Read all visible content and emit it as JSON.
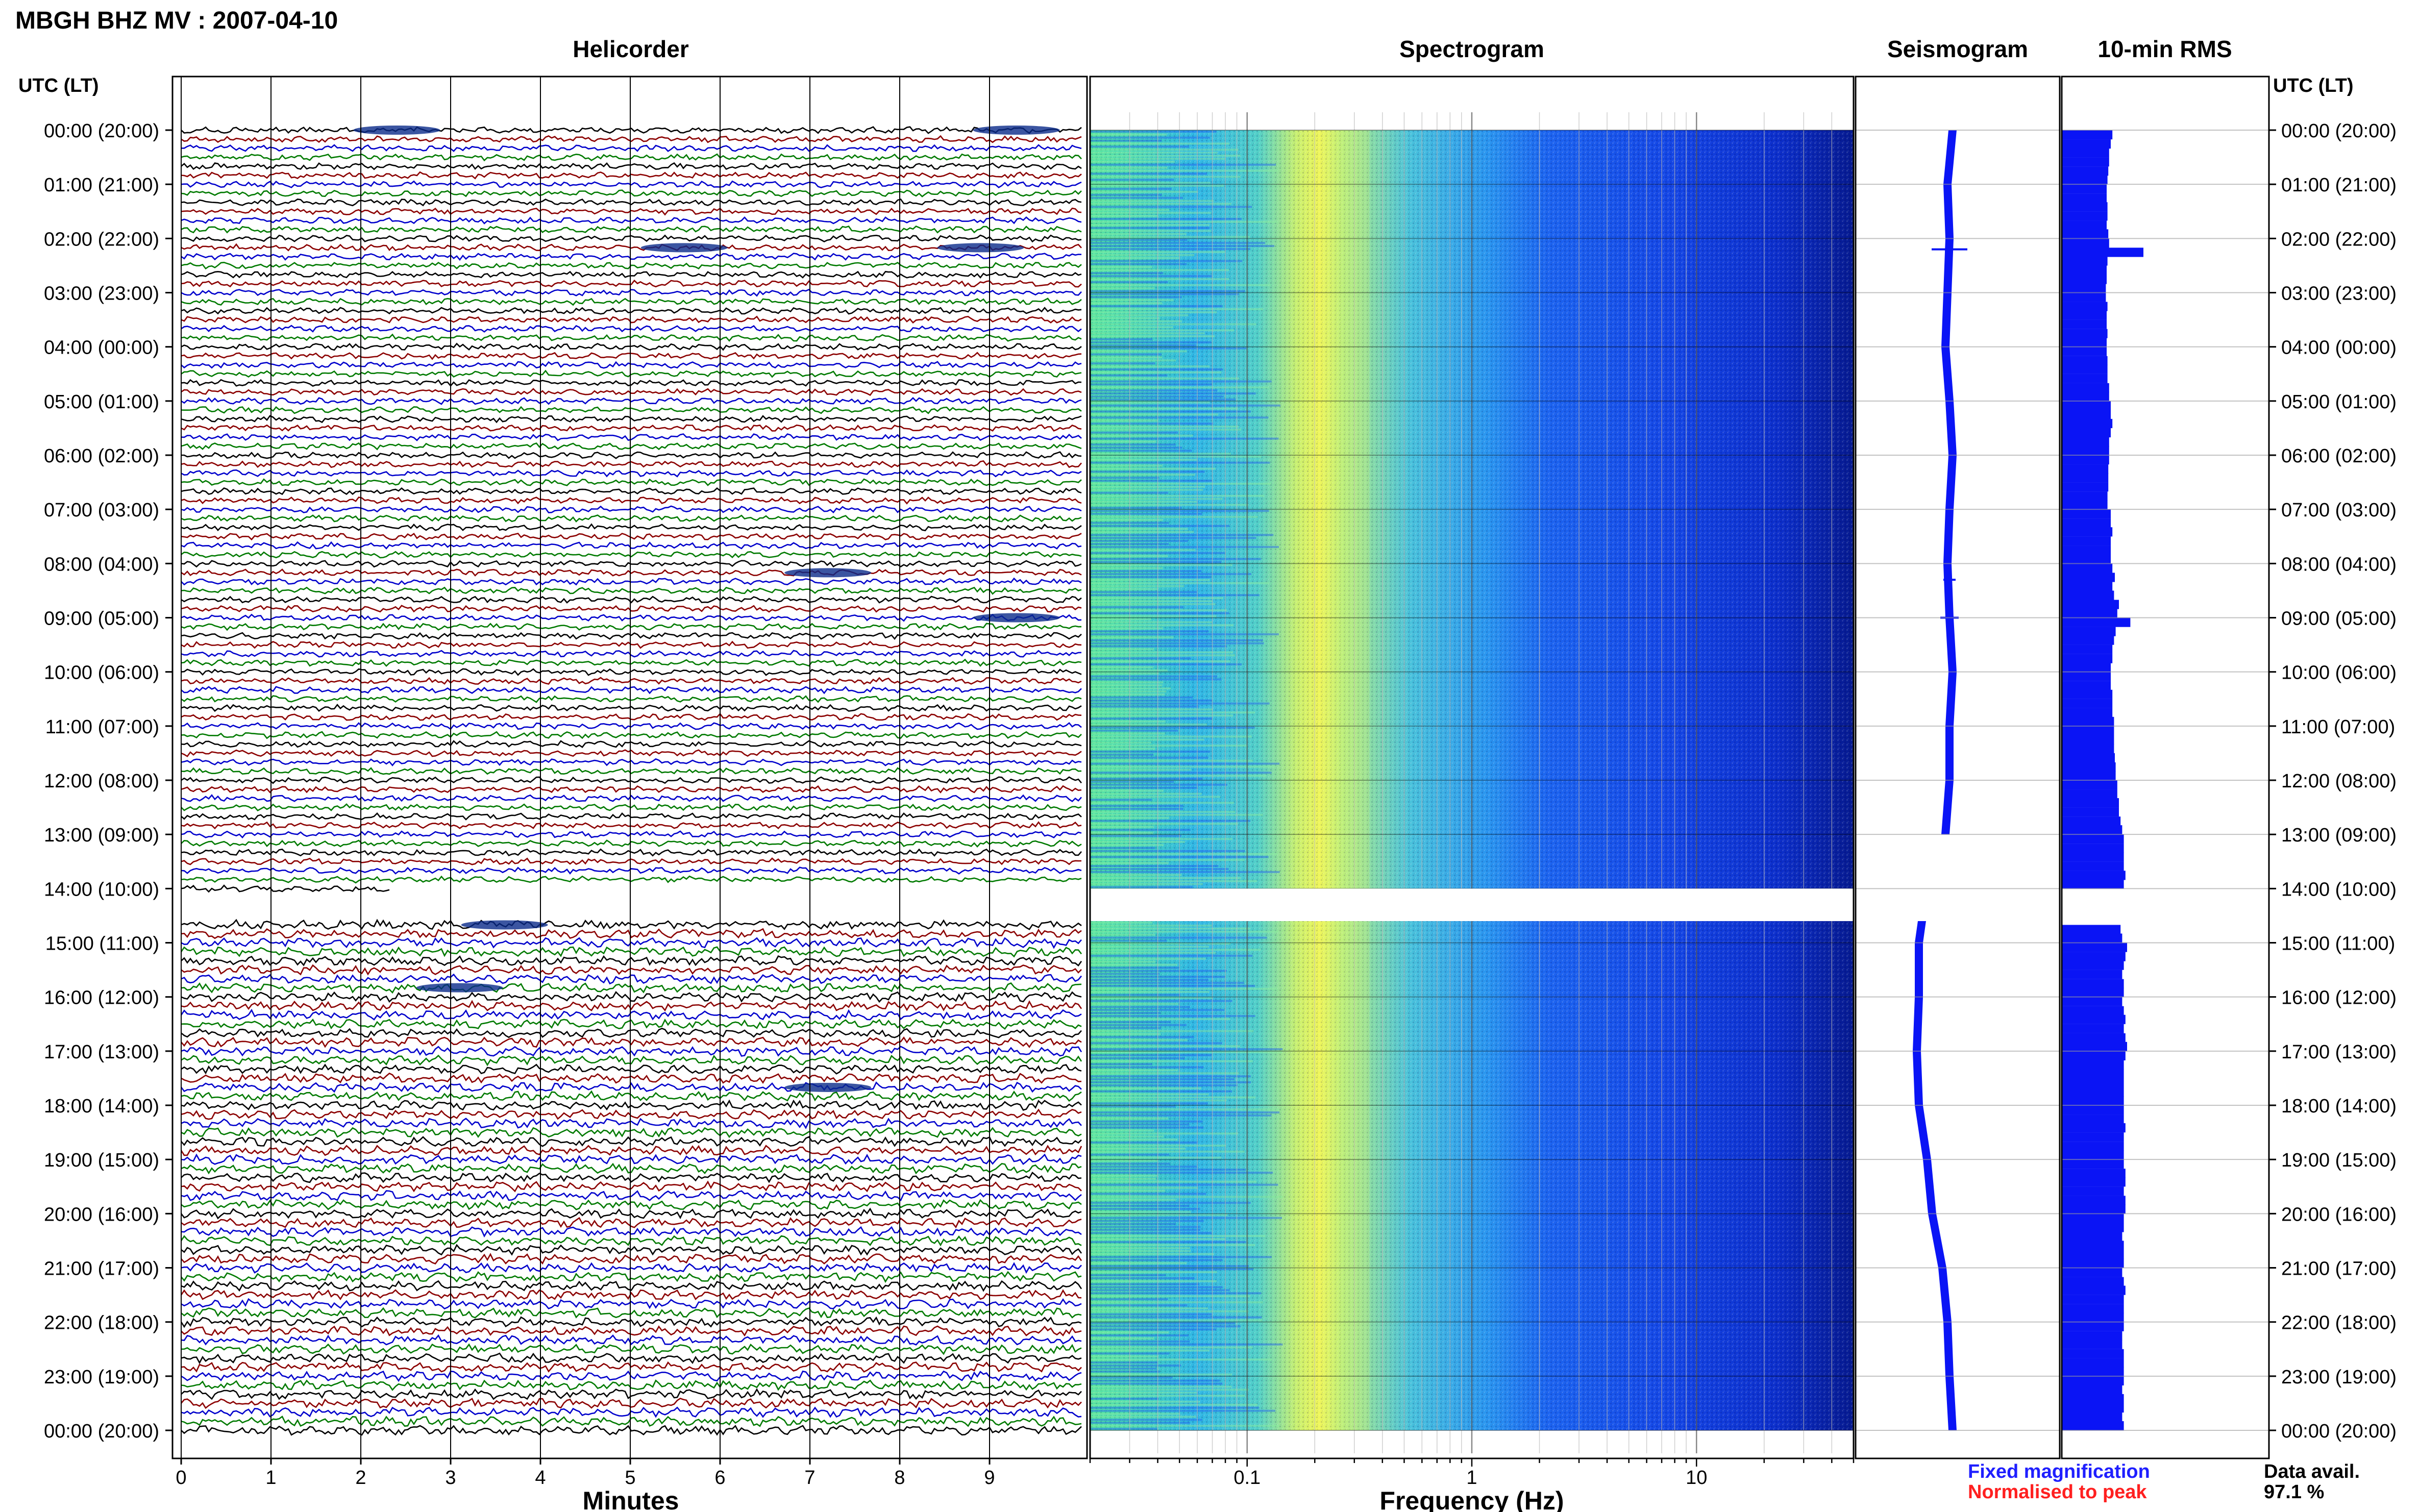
{
  "header": {
    "station_title": "MBGH BHZ MV : 2007-04-10",
    "time_axis_label": "UTC (LT)"
  },
  "panels": {
    "helicorder": "Helicorder",
    "spectrogram": "Spectrogram",
    "seismogram": "Seismogram",
    "rms": "10-min RMS"
  },
  "legend": {
    "fixed": "Fixed magnification",
    "normalised": "Normalised to peak",
    "fixed_color": "#1f1fff",
    "normalised_color": "#ff2020"
  },
  "data_availability": {
    "label": "Data avail.",
    "value": "97.1 %"
  },
  "colors": {
    "trace_cycle": [
      "#000000",
      "#8b0000",
      "#0000cc",
      "#007a00"
    ],
    "seismogram_fill": "#0a14f5",
    "rms_fill": "#0a14f5",
    "spectrogram_low": "#00007a",
    "spectrogram_mid": "#1e90ff",
    "spectrogram_high": "#ffff40"
  },
  "chart_data": [
    {
      "type": "heatmap",
      "panel": "helicorder",
      "xlabel": "Minutes",
      "ylabel": "UTC (LT)",
      "xlim": [
        0,
        10
      ],
      "x_ticks": [
        "0",
        "1",
        "2",
        "3",
        "4",
        "5",
        "6",
        "7",
        "8",
        "9"
      ],
      "y_ticks": [
        "00:00 (20:00)",
        "01:00 (21:00)",
        "02:00 (22:00)",
        "03:00 (23:00)",
        "04:00 (00:00)",
        "05:00 (01:00)",
        "06:00 (02:00)",
        "07:00 (03:00)",
        "08:00 (04:00)",
        "09:00 (05:00)",
        "10:00 (06:00)",
        "11:00 (07:00)",
        "12:00 (08:00)",
        "13:00 (09:00)",
        "14:00 (10:00)",
        "15:00 (11:00)",
        "16:00 (12:00)",
        "17:00 (13:00)",
        "18:00 (14:00)",
        "19:00 (15:00)",
        "20:00 (16:00)",
        "21:00 (17:00)",
        "22:00 (18:00)",
        "23:00 (19:00)",
        "00:00 (20:00)"
      ],
      "lines_per_hour": 6,
      "data_gap_hours": [
        14.0,
        14.6
      ],
      "events": [
        {
          "hour": 0.0,
          "minute": 2.4
        },
        {
          "hour": 0.0,
          "minute": 9.3
        },
        {
          "hour": 2.17,
          "minute": 5.6
        },
        {
          "hour": 2.17,
          "minute": 8.9
        },
        {
          "hour": 8.17,
          "minute": 7.2
        },
        {
          "hour": 9.0,
          "minute": 9.3
        },
        {
          "hour": 14.67,
          "minute": 3.6
        },
        {
          "hour": 15.83,
          "minute": 3.1
        },
        {
          "hour": 17.67,
          "minute": 7.2
        }
      ]
    },
    {
      "type": "heatmap",
      "panel": "spectrogram",
      "xlabel": "Frequency (Hz)",
      "x_scale": "log",
      "xlim": [
        0.02,
        50
      ],
      "x_ticks": [
        "0.1",
        "1",
        "10"
      ],
      "peak_band_hz": [
        0.2,
        0.35
      ],
      "data_gap_hours": [
        14.0,
        14.6
      ]
    },
    {
      "type": "line",
      "panel": "seismogram",
      "x": [
        0,
        1,
        2,
        3,
        4,
        5,
        6,
        7,
        8,
        9,
        10,
        11,
        12,
        13,
        14.6,
        15,
        16,
        17,
        18,
        19,
        20,
        21,
        22,
        23,
        24
      ],
      "y": [
        0.45,
        0.4,
        0.42,
        0.4,
        0.38,
        0.42,
        0.45,
        0.42,
        0.4,
        0.42,
        0.45,
        0.42,
        0.42,
        0.38,
        0.15,
        0.12,
        0.12,
        0.1,
        0.12,
        0.2,
        0.25,
        0.35,
        0.4,
        0.42,
        0.45
      ]
    },
    {
      "type": "bar",
      "panel": "rms",
      "x": [
        0,
        0.17,
        0.33,
        0.5,
        0.67,
        0.83,
        1,
        1.17,
        1.33,
        1.5,
        1.67,
        1.83,
        2,
        2.17,
        2.33,
        2.5,
        2.67,
        2.83,
        3,
        3.17,
        3.33,
        3.5,
        3.67,
        3.83,
        4,
        4.17,
        4.33,
        4.5,
        4.67,
        4.83,
        5,
        5.17,
        5.33,
        5.5,
        5.67,
        5.83,
        6,
        6.17,
        6.33,
        6.5,
        6.67,
        6.83,
        7,
        7.17,
        7.33,
        7.5,
        7.67,
        7.83,
        8,
        8.17,
        8.33,
        8.5,
        8.67,
        8.83,
        9,
        9.17,
        9.33,
        9.5,
        9.67,
        9.83,
        10,
        10.17,
        10.33,
        10.5,
        10.67,
        10.83,
        11,
        11.17,
        11.33,
        11.5,
        11.67,
        11.83,
        12,
        12.17,
        12.33,
        12.5,
        12.67,
        12.83,
        13,
        13.17,
        13.33,
        13.5,
        13.67,
        13.83,
        14.67,
        14.83,
        15,
        15.17,
        15.33,
        15.5,
        15.67,
        15.83,
        16,
        16.17,
        16.33,
        16.5,
        16.67,
        16.83,
        17,
        17.17,
        17.33,
        17.5,
        17.67,
        17.83,
        18,
        18.17,
        18.33,
        18.5,
        18.67,
        18.83,
        19,
        19.17,
        19.33,
        19.5,
        19.67,
        19.83,
        20,
        20.17,
        20.33,
        20.5,
        20.67,
        20.83,
        21,
        21.17,
        21.33,
        21.5,
        21.67,
        21.83,
        22,
        22.17,
        22.33,
        22.5,
        22.67,
        22.83,
        23,
        23.17,
        23.33,
        23.5,
        23.67,
        23.83
      ],
      "values": [
        0.62,
        0.6,
        0.58,
        0.58,
        0.57,
        0.56,
        0.55,
        0.55,
        0.56,
        0.56,
        0.55,
        0.57,
        0.58,
        1.0,
        0.56,
        0.55,
        0.55,
        0.54,
        0.54,
        0.56,
        0.55,
        0.55,
        0.56,
        0.55,
        0.55,
        0.56,
        0.56,
        0.56,
        0.58,
        0.58,
        0.6,
        0.6,
        0.62,
        0.6,
        0.58,
        0.58,
        0.58,
        0.57,
        0.57,
        0.57,
        0.56,
        0.56,
        0.6,
        0.6,
        0.62,
        0.6,
        0.6,
        0.6,
        0.62,
        0.65,
        0.62,
        0.64,
        0.7,
        0.68,
        0.84,
        0.66,
        0.64,
        0.62,
        0.62,
        0.6,
        0.6,
        0.6,
        0.62,
        0.62,
        0.62,
        0.64,
        0.64,
        0.64,
        0.64,
        0.65,
        0.66,
        0.66,
        0.68,
        0.68,
        0.7,
        0.7,
        0.72,
        0.74,
        0.76,
        0.76,
        0.76,
        0.76,
        0.78,
        0.76,
        0.72,
        0.74,
        0.8,
        0.78,
        0.76,
        0.74,
        0.76,
        0.76,
        0.74,
        0.76,
        0.78,
        0.76,
        0.78,
        0.8,
        0.78,
        0.76,
        0.76,
        0.76,
        0.76,
        0.76,
        0.76,
        0.76,
        0.78,
        0.76,
        0.76,
        0.76,
        0.76,
        0.78,
        0.78,
        0.76,
        0.78,
        0.78,
        0.76,
        0.76,
        0.74,
        0.76,
        0.76,
        0.76,
        0.74,
        0.76,
        0.78,
        0.76,
        0.76,
        0.76,
        0.76,
        0.74,
        0.74,
        0.76,
        0.76,
        0.76,
        0.76,
        0.74,
        0.76,
        0.76,
        0.74,
        0.76
      ]
    }
  ]
}
